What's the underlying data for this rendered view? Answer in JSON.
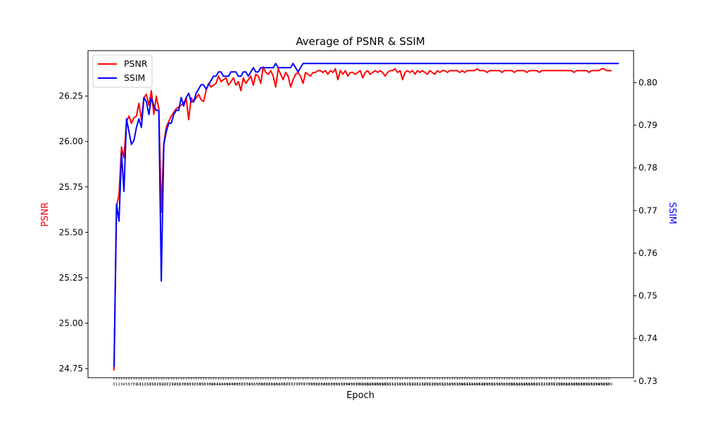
{
  "chart_data": {
    "type": "line",
    "title": "Average of PSNR & SSIM",
    "xlabel": "Epoch",
    "ylabel_left": "PSNR",
    "ylabel_right": "SSIM",
    "xlim": [
      0,
      199
    ],
    "ylim_left": [
      24.7,
      26.5
    ],
    "ylim_right": [
      0.7308,
      0.8075
    ],
    "yticks_left": [
      "24.75",
      "25.00",
      "25.25",
      "25.50",
      "25.75",
      "26.00",
      "26.25"
    ],
    "yticks_right": [
      "0.73",
      "0.74",
      "0.75",
      "0.76",
      "0.77",
      "0.78",
      "0.79",
      "0.80"
    ],
    "legend_location": "upper left",
    "colors": {
      "PSNR": "#ff0000",
      "SSIM": "#0000ff",
      "left_axis_label": "#ff0000",
      "right_axis_label": "#0000ff"
    },
    "series": [
      {
        "name": "PSNR",
        "axis": "left",
        "values": [
          24.74,
          25.64,
          25.71,
          25.97,
          25.91,
          26.11,
          26.14,
          26.1,
          26.13,
          26.14,
          26.21,
          26.12,
          26.24,
          26.26,
          26.2,
          26.28,
          26.15,
          26.25,
          26.18,
          25.61,
          25.99,
          26.08,
          26.11,
          26.14,
          26.16,
          26.18,
          26.19,
          26.2,
          26.21,
          26.24,
          26.12,
          26.24,
          26.22,
          26.24,
          26.26,
          26.23,
          26.22,
          26.28,
          26.32,
          26.3,
          26.31,
          26.32,
          26.36,
          26.33,
          26.34,
          26.35,
          26.31,
          26.33,
          26.35,
          26.31,
          26.33,
          26.28,
          26.35,
          26.32,
          26.34,
          26.36,
          26.31,
          26.37,
          26.36,
          26.32,
          26.41,
          26.38,
          26.37,
          26.39,
          26.36,
          26.3,
          26.4,
          26.37,
          26.34,
          26.38,
          26.36,
          26.3,
          26.34,
          26.37,
          26.38,
          26.36,
          26.32,
          26.38,
          26.37,
          26.36,
          26.38,
          26.38,
          26.39,
          26.39,
          26.38,
          26.39,
          26.37,
          26.39,
          26.38,
          26.4,
          26.34,
          26.39,
          26.37,
          26.39,
          26.36,
          26.38,
          26.38,
          26.37,
          26.38,
          26.39,
          26.35,
          26.38,
          26.39,
          26.37,
          26.38,
          26.39,
          26.38,
          26.39,
          26.38,
          26.36,
          26.38,
          26.39,
          26.39,
          26.4,
          26.38,
          26.39,
          26.34,
          26.38,
          26.39,
          26.38,
          26.39,
          26.37,
          26.39,
          26.38,
          26.39,
          26.38,
          26.37,
          26.39,
          26.38,
          26.37,
          26.39,
          26.38,
          26.39,
          26.39,
          26.38,
          26.39,
          26.39,
          26.39,
          26.39,
          26.38,
          26.39,
          26.38,
          26.39,
          26.39,
          26.39,
          26.39,
          26.4,
          26.39,
          26.39,
          26.39,
          26.38,
          26.39,
          26.39,
          26.39,
          26.39,
          26.39,
          26.38,
          26.39,
          26.39,
          26.39,
          26.39,
          26.38,
          26.39,
          26.39,
          26.39,
          26.39,
          26.38,
          26.39,
          26.39,
          26.39,
          26.39,
          26.38,
          26.39,
          26.39,
          26.39,
          26.39,
          26.39,
          26.39,
          26.39,
          26.39,
          26.39,
          26.39,
          26.39,
          26.39,
          26.39,
          26.38,
          26.39,
          26.39,
          26.39,
          26.39,
          26.39,
          26.38,
          26.39,
          26.39,
          26.39,
          26.39,
          26.4,
          26.4,
          26.39,
          26.39,
          26.39
        ]
      },
      {
        "name": "SSIM",
        "axis": "right",
        "values": [
          0.7333,
          0.7715,
          0.7675,
          0.7835,
          0.7745,
          0.7915,
          0.7885,
          0.7855,
          0.7865,
          0.7895,
          0.7915,
          0.7895,
          0.7965,
          0.7955,
          0.7925,
          0.7965,
          0.7945,
          0.7935,
          0.7935,
          0.7535,
          0.7855,
          0.7885,
          0.7905,
          0.7905,
          0.7925,
          0.7935,
          0.7935,
          0.7965,
          0.7945,
          0.7965,
          0.7975,
          0.7955,
          0.7955,
          0.7975,
          0.7985,
          0.7995,
          0.7995,
          0.7985,
          0.7995,
          0.8005,
          0.8015,
          0.8015,
          0.8025,
          0.8025,
          0.8015,
          0.8015,
          0.8015,
          0.8025,
          0.8025,
          0.8025,
          0.8015,
          0.8015,
          0.8025,
          0.8025,
          0.8015,
          0.8025,
          0.8035,
          0.8025,
          0.8025,
          0.8035,
          0.8035,
          0.8035,
          0.8035,
          0.8035,
          0.8035,
          0.8045,
          0.8035,
          0.8035,
          0.8035,
          0.8035,
          0.8035,
          0.8035,
          0.8045,
          0.8035,
          0.8025,
          0.8035,
          0.8045,
          0.8045,
          0.8045,
          0.8045,
          0.8045,
          0.8045,
          0.8045,
          0.8045,
          0.8045,
          0.8045,
          0.8045,
          0.8045,
          0.8045,
          0.8045,
          0.8045,
          0.8045,
          0.8045,
          0.8045,
          0.8045,
          0.8045,
          0.8045,
          0.8045,
          0.8045,
          0.8045,
          0.8045,
          0.8045,
          0.8045,
          0.8045,
          0.8045,
          0.8045,
          0.8045,
          0.8045,
          0.8045,
          0.8045,
          0.8045,
          0.8045,
          0.8045,
          0.8045,
          0.8045,
          0.8045,
          0.8045,
          0.8045,
          0.8045,
          0.8045,
          0.8045,
          0.8045,
          0.8045,
          0.8045,
          0.8045,
          0.8045,
          0.8045,
          0.8045,
          0.8045,
          0.8045,
          0.8045,
          0.8045,
          0.8045,
          0.8045,
          0.8045,
          0.8045,
          0.8045,
          0.8045,
          0.8045,
          0.8045,
          0.8045,
          0.8045,
          0.8045,
          0.8045,
          0.8045,
          0.8045,
          0.8045,
          0.8045,
          0.8045,
          0.8045,
          0.8045,
          0.8045,
          0.8045,
          0.8045,
          0.8045,
          0.8045,
          0.8045,
          0.8045,
          0.8045,
          0.8045,
          0.8045,
          0.8045,
          0.8045,
          0.8045,
          0.8045,
          0.8045,
          0.8045,
          0.8045,
          0.8045,
          0.8045,
          0.8045,
          0.8045,
          0.8045,
          0.8045,
          0.8045,
          0.8045,
          0.8045,
          0.8045,
          0.8045,
          0.8045,
          0.8045,
          0.8045,
          0.8045,
          0.8045,
          0.8045,
          0.8045,
          0.8045,
          0.8045,
          0.8045,
          0.8045,
          0.8045,
          0.8045,
          0.8045,
          0.8045,
          0.8045,
          0.8045,
          0.8045,
          0.8045,
          0.8045,
          0.8045,
          0.8045,
          0.8045,
          0.8045,
          0.8045
        ]
      }
    ]
  }
}
